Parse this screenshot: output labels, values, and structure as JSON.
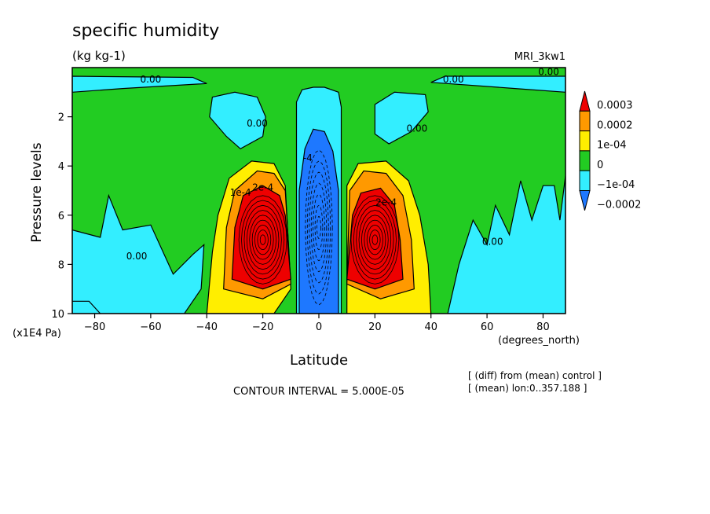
{
  "chart_data": {
    "type": "heatmap",
    "title": "specific humidity",
    "units": "(kg kg-1)",
    "model": "MRI_3kw1",
    "xlabel": "Latitude",
    "xunits": "(degrees_north)",
    "ylabel": "Pressure levels",
    "yunits": "(x1E4 Pa)",
    "xlim": [
      -88,
      88
    ],
    "ylim": [
      10,
      0
    ],
    "x_ticks": [
      -80,
      -60,
      -40,
      -20,
      0,
      20,
      40,
      60,
      80
    ],
    "y_ticks": [
      2,
      4,
      6,
      8,
      10
    ],
    "contour_interval_text": "CONTOUR INTERVAL = 5.000E-05",
    "contour_interval": 5e-05,
    "notes": [
      "[ (diff) from (mean) control ]",
      "[ (mean) lon:0..357.188 ]"
    ],
    "colorbar": {
      "labels": [
        "0.0003",
        "0.0002",
        "1e-04",
        "0",
        "-1e-04",
        "-0.0002"
      ],
      "colors": [
        "#ee0000",
        "#ff9900",
        "#ffee00",
        "#22cc22",
        "#33eeff",
        "#1e78ff"
      ]
    },
    "contour_labels": [
      {
        "text": "0.00",
        "x": -60,
        "y": 0.6
      },
      {
        "text": "0.00",
        "x": 48,
        "y": 0.6
      },
      {
        "text": "0.00",
        "x": 82,
        "y": 0.3
      },
      {
        "text": "0.00",
        "x": -22,
        "y": 2.4
      },
      {
        "text": "0.00",
        "x": 35,
        "y": 2.6
      },
      {
        "text": "0.00",
        "x": -65,
        "y": 7.8
      },
      {
        "text": "0.00",
        "x": 62,
        "y": 7.2
      },
      {
        "text": "1e-4",
        "x": -28,
        "y": 5.2
      },
      {
        "text": "2e-4",
        "x": -20,
        "y": 5.0
      },
      {
        "text": "-4",
        "x": -4,
        "y": 3.8
      },
      {
        "text": "2e-4",
        "x": 24,
        "y": 5.6
      }
    ]
  }
}
